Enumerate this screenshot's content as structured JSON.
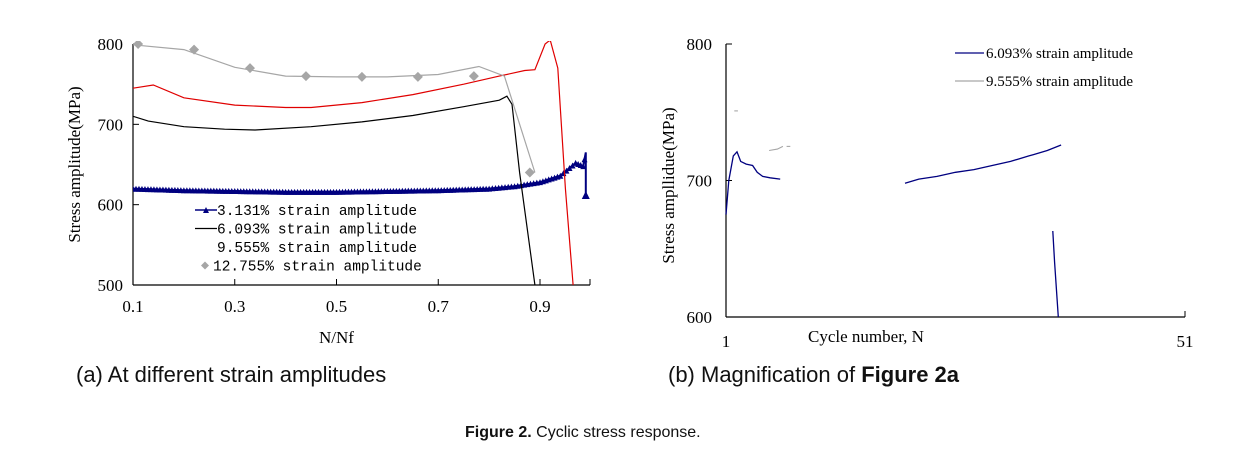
{
  "chart_data": [
    {
      "type": "line",
      "title": "",
      "xlabel": "N/Nf",
      "ylabel": "Stress amplitude(MPa)",
      "xlim": [
        0.1,
        1.0
      ],
      "ylim": [
        500,
        800
      ],
      "xticks": [
        "0.1",
        "0.3",
        "0.5",
        "0.7",
        "0.9"
      ],
      "xtick_values": [
        0.1,
        0.3,
        0.5,
        0.7,
        0.9
      ],
      "yticks": [
        "500",
        "600",
        "700",
        "800"
      ],
      "ytick_values": [
        500,
        600,
        700,
        800
      ],
      "grid": false,
      "legend_position": "bottom-center",
      "series": [
        {
          "name": "3.131% strain amplitude",
          "color": "#000080",
          "marker": "triangle",
          "x": [
            0.1,
            0.2,
            0.3,
            0.4,
            0.5,
            0.6,
            0.7,
            0.8,
            0.85,
            0.9,
            0.94,
            0.97,
            0.985,
            0.99,
            0.99
          ],
          "y": [
            620,
            618,
            617,
            616,
            616,
            617,
            618,
            620,
            623,
            628,
            636,
            652,
            648,
            665,
            612
          ]
        },
        {
          "name": "6.093% strain amplitude",
          "color": "#000000",
          "marker": "none",
          "x": [
            0.1,
            0.13,
            0.2,
            0.28,
            0.34,
            0.45,
            0.55,
            0.65,
            0.75,
            0.82,
            0.835,
            0.845,
            0.86,
            0.89
          ],
          "y": [
            710,
            704,
            697,
            694,
            693,
            697,
            703,
            711,
            722,
            730,
            735,
            725,
            640,
            500
          ]
        },
        {
          "name": "9.555% strain amplitude",
          "color": "#e00000",
          "marker": "none",
          "x": [
            0.1,
            0.14,
            0.2,
            0.3,
            0.4,
            0.45,
            0.55,
            0.65,
            0.75,
            0.82,
            0.87,
            0.89,
            0.91,
            0.92,
            0.935,
            0.95,
            0.965
          ],
          "y": [
            745,
            749,
            733,
            724,
            721,
            721,
            727,
            737,
            750,
            760,
            767,
            768,
            800,
            805,
            770,
            620,
            500
          ]
        },
        {
          "name": "12.755% strain amplitude",
          "color": "#a6a6a6",
          "marker": "diamond",
          "x": [
            0.1,
            0.2,
            0.3,
            0.4,
            0.5,
            0.6,
            0.7,
            0.78,
            0.83,
            0.89
          ],
          "y": [
            799,
            793,
            771,
            760,
            759,
            759,
            762,
            772,
            760,
            640
          ],
          "marker_x": [
            0.11,
            0.22,
            0.33,
            0.44,
            0.55,
            0.66,
            0.77,
            0.88
          ],
          "marker_y": [
            800,
            793,
            770,
            760,
            759,
            759,
            760,
            640
          ]
        }
      ]
    },
    {
      "type": "line",
      "title": "",
      "xlabel": "Cycle number,   N",
      "ylabel": "Stress ampllidue(MPa)",
      "xlim": [
        1,
        51
      ],
      "ylim": [
        600,
        800
      ],
      "xticks": [
        "1",
        "51"
      ],
      "xtick_values": [
        1,
        51
      ],
      "yticks": [
        "600",
        "700",
        "800"
      ],
      "ytick_values": [
        600,
        700,
        800
      ],
      "grid": false,
      "legend_position": "top-right",
      "series": [
        {
          "name": "6.093% strain amplitude",
          "color": "#000080",
          "segments": [
            {
              "x": [
                1,
                1.3,
                1.8,
                2.2,
                2.6,
                3.2,
                3.9,
                4.4,
                5.0,
                5.8,
                6.9
              ],
              "y": [
                675,
                700,
                718,
                721,
                714,
                712,
                711,
                706,
                703,
                702,
                701
              ]
            },
            {
              "x": [
                20.5,
                22,
                24,
                26,
                28,
                30,
                32,
                34,
                34.5,
                36,
                37.5
              ],
              "y": [
                698,
                701,
                703,
                706,
                708,
                711,
                714,
                718,
                719,
                722,
                726
              ]
            },
            {
              "x": [
                36.6,
                36.8,
                37.2
              ],
              "y": [
                663,
                640,
                600
              ]
            }
          ]
        },
        {
          "name": "9.555% strain amplitude",
          "color": "#a6a6a6",
          "segments": [
            {
              "x": [
                1.9,
                2.3
              ],
              "y": [
                751,
                751
              ]
            },
            {
              "x": [
                5.7,
                6.6,
                7.2
              ],
              "y": [
                722,
                723,
                725
              ]
            },
            {
              "x": [
                7.6,
                8.0
              ],
              "y": [
                725,
                725
              ]
            }
          ]
        }
      ]
    }
  ],
  "captions": {
    "a": "(a) At different strain amplitudes",
    "b_prefix": "(b) Magnification of ",
    "b_ref": "Figure 2a",
    "figure_label": "Figure 2.",
    "figure_text": " Cyclic stress response."
  }
}
